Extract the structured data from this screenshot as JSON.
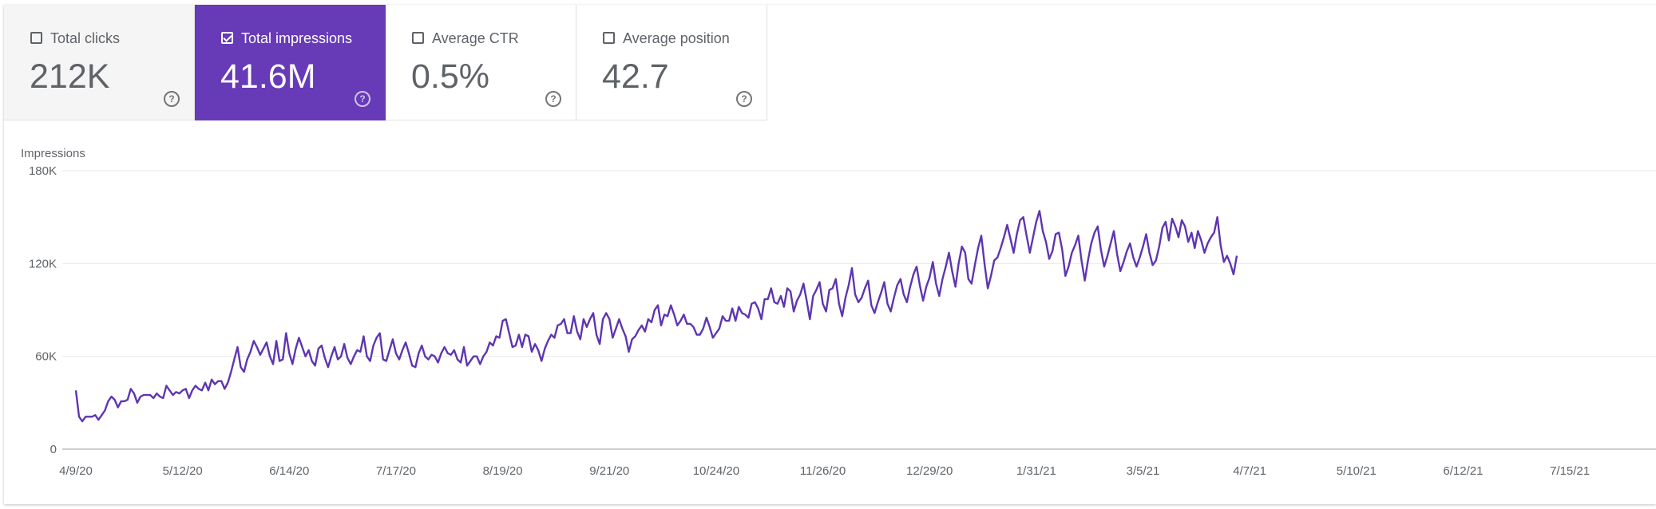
{
  "cards": [
    {
      "label": "Total clicks",
      "value": "212K",
      "checked": false
    },
    {
      "label": "Total impressions",
      "value": "41.6M",
      "checked": true
    },
    {
      "label": "Average CTR",
      "value": "0.5%",
      "checked": false
    },
    {
      "label": "Average position",
      "value": "42.7",
      "checked": false
    }
  ],
  "help_glyph": "?",
  "colors": {
    "accent": "#673ab7",
    "line": "#5e35b1"
  },
  "chart_data": {
    "type": "line",
    "ylabel": "Impressions",
    "ylim": [
      0,
      180000
    ],
    "yticks": [
      {
        "v": 0,
        "label": "0"
      },
      {
        "v": 60000,
        "label": "60K"
      },
      {
        "v": 120000,
        "label": "120K"
      },
      {
        "v": 180000,
        "label": "180K"
      }
    ],
    "x_start": "4/9/20",
    "x_end": "7/31/21",
    "xtick_labels": [
      "4/9/20",
      "5/12/20",
      "6/14/20",
      "7/17/20",
      "8/19/20",
      "9/21/20",
      "10/24/20",
      "11/26/20",
      "12/29/20",
      "1/31/21",
      "3/5/21",
      "4/7/21",
      "5/10/21",
      "6/12/21",
      "7/15/21"
    ],
    "series": [
      {
        "name": "Impressions",
        "values": [
          38000,
          21000,
          18000,
          21000,
          21000,
          21000,
          22000,
          19000,
          22000,
          25000,
          31000,
          34000,
          32000,
          27000,
          31000,
          31000,
          32000,
          39000,
          36000,
          30000,
          34000,
          35000,
          35000,
          35000,
          33000,
          36000,
          34000,
          33000,
          41000,
          38000,
          35000,
          37000,
          36000,
          38000,
          39000,
          33000,
          38000,
          41000,
          39000,
          38000,
          43000,
          38000,
          45000,
          42000,
          44000,
          44000,
          39000,
          43000,
          50000,
          58000,
          66000,
          53000,
          50000,
          58000,
          63000,
          70000,
          66000,
          61000,
          65000,
          69000,
          60000,
          55000,
          70000,
          57000,
          58000,
          75000,
          62000,
          55000,
          65000,
          72000,
          66000,
          60000,
          64000,
          57000,
          54000,
          65000,
          67000,
          59000,
          53000,
          60000,
          66000,
          58000,
          60000,
          68000,
          59000,
          55000,
          60000,
          64000,
          63000,
          73000,
          60000,
          57000,
          67000,
          72000,
          75000,
          58000,
          57000,
          64000,
          71000,
          62000,
          58000,
          64000,
          69000,
          62000,
          54000,
          53000,
          62000,
          67000,
          60000,
          58000,
          61000,
          60000,
          56000,
          62000,
          66000,
          62000,
          61000,
          64000,
          58000,
          56000,
          66000,
          54000,
          57000,
          60000,
          60000,
          55000,
          60000,
          63000,
          69000,
          67000,
          73000,
          72000,
          83000,
          84000,
          75000,
          66000,
          67000,
          74000,
          66000,
          74000,
          73000,
          63000,
          68000,
          64000,
          57000,
          65000,
          70000,
          74000,
          72000,
          80000,
          81000,
          84000,
          75000,
          75000,
          86000,
          76000,
          71000,
          84000,
          79000,
          84000,
          88000,
          74000,
          68000,
          84000,
          88000,
          84000,
          72000,
          78000,
          84000,
          78000,
          73000,
          63000,
          71000,
          73000,
          77000,
          80000,
          76000,
          84000,
          82000,
          90000,
          93000,
          80000,
          87000,
          86000,
          93000,
          87000,
          80000,
          83000,
          87000,
          81000,
          81000,
          79000,
          74000,
          74000,
          78000,
          85000,
          79000,
          72000,
          75000,
          78000,
          86000,
          83000,
          83000,
          91000,
          83000,
          92000,
          88000,
          87000,
          85000,
          94000,
          95000,
          91000,
          84000,
          97000,
          97000,
          104000,
          95000,
          94000,
          99000,
          92000,
          104000,
          102000,
          89000,
          96000,
          100000,
          107000,
          96000,
          84000,
          99000,
          103000,
          108000,
          94000,
          89000,
          103000,
          104000,
          110000,
          94000,
          86000,
          98000,
          106000,
          117000,
          100000,
          95000,
          98000,
          104000,
          109000,
          93000,
          88000,
          95000,
          101000,
          108000,
          94000,
          89000,
          98000,
          106000,
          110000,
          100000,
          95000,
          105000,
          113000,
          118000,
          106000,
          96000,
          105000,
          111000,
          121000,
          107000,
          99000,
          110000,
          118000,
          127000,
          115000,
          105000,
          120000,
          131000,
          127000,
          110000,
          107000,
          119000,
          130000,
          138000,
          120000,
          104000,
          112000,
          122000,
          124000,
          130000,
          137000,
          145000,
          136000,
          127000,
          139000,
          148000,
          150000,
          138000,
          127000,
          137000,
          147000,
          154000,
          141000,
          134000,
          123000,
          128000,
          139000,
          140000,
          129000,
          112000,
          118000,
          127000,
          132000,
          138000,
          122000,
          109000,
          122000,
          133000,
          140000,
          144000,
          129000,
          118000,
          125000,
          133000,
          141000,
          126000,
          115000,
          121000,
          128000,
          133000,
          124000,
          118000,
          124000,
          131000,
          139000,
          127000,
          119000,
          122000,
          131000,
          143000,
          147000,
          135000,
          149000,
          144000,
          137000,
          148000,
          144000,
          134000,
          140000,
          130000,
          141000,
          135000,
          127000,
          133000,
          137000,
          140000,
          150000,
          132000,
          121000,
          125000,
          120000,
          113000,
          125000
        ]
      }
    ]
  }
}
